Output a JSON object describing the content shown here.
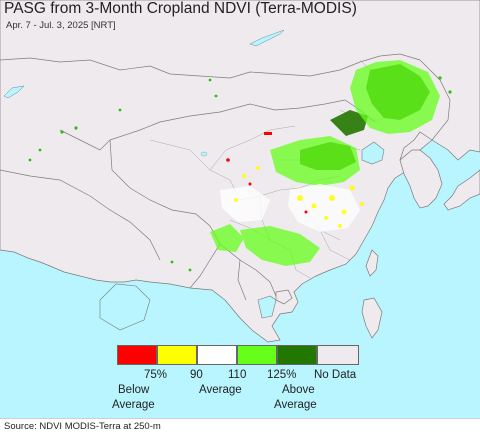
{
  "header": {
    "title": "PASG from 3-Month Cropland NDVI (Terra-MODIS)",
    "date_range": "Apr. 7 - Jul. 3, 2025 [NRT]"
  },
  "legend": {
    "items": [
      {
        "color": "#ff0000",
        "tick": "75%"
      },
      {
        "color": "#ffff00",
        "tick": "90"
      },
      {
        "color": "#ffffff",
        "tick": "110"
      },
      {
        "color": "#66ff1a",
        "tick": "125%"
      },
      {
        "color": "#227700",
        "tick": ""
      },
      {
        "color": "#eeeaee",
        "tick": "No Data"
      }
    ],
    "below": [
      "Below",
      "Average"
    ],
    "average": "Average",
    "above": [
      "Above",
      "Average"
    ]
  },
  "footer": {
    "source": "Source: NDVI MODIS-Terra at 250-m"
  },
  "colors": {
    "ocean": "#b9f5ff",
    "land": "#efeaee",
    "border": "#8a8a8a",
    "water_body": "#b9f5ff"
  }
}
